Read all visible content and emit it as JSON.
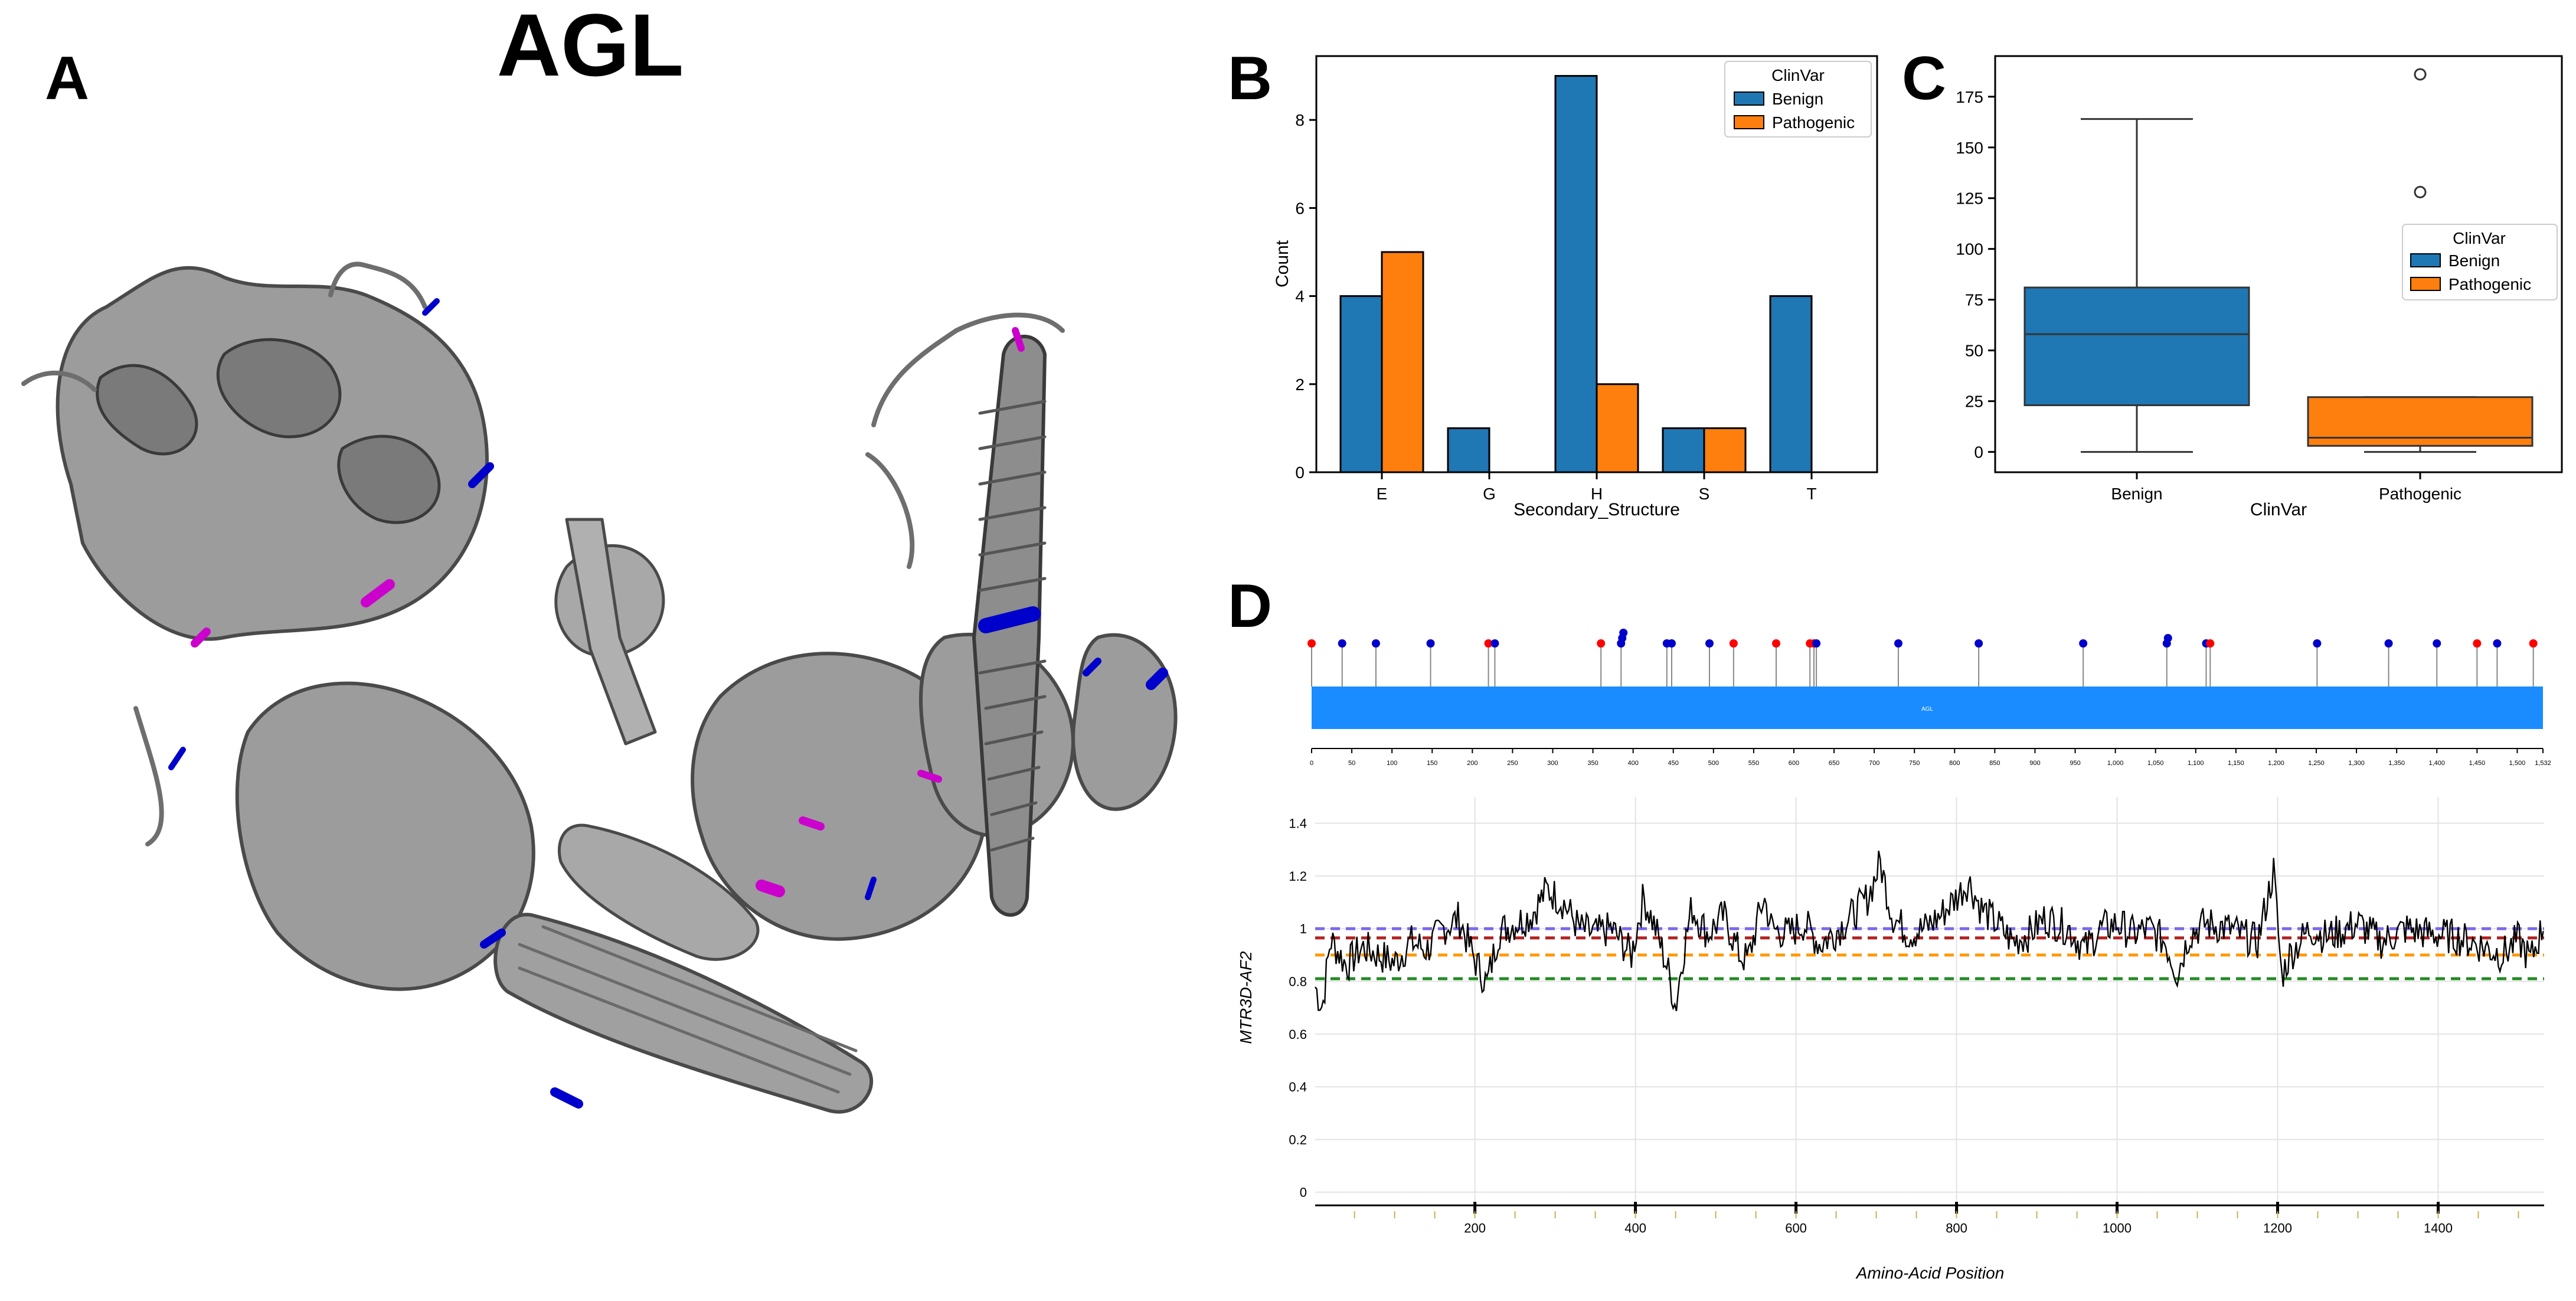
{
  "figure_title": "AGL",
  "panel_labels": {
    "a": "A",
    "b": "B",
    "c": "C",
    "d": "D"
  },
  "colors": {
    "benign": "#1f77b4",
    "pathogenic": "#ff7f0e",
    "protein_bar": "#1a8cff",
    "lollipop_benign": "#0000cc",
    "lollipop_pathogenic": "#ff0000",
    "structure_gray": "#8a8a8a",
    "structure_blue": "#0000cc",
    "structure_magenta": "#cc00cc",
    "line_purple": "#7b68ee",
    "line_red": "#b22222",
    "line_orange": "#ff9900",
    "line_green": "#228b22"
  },
  "panel_a": {
    "description_icon": "protein-structure-ribbon"
  },
  "chart_data": [
    {
      "panel": "B",
      "type": "bar",
      "categories": [
        "E",
        "G",
        "H",
        "S",
        "T"
      ],
      "series": [
        {
          "name": "Benign",
          "values": [
            4,
            1,
            9,
            1,
            4
          ]
        },
        {
          "name": "Pathogenic",
          "values": [
            5,
            0,
            2,
            1,
            0
          ]
        }
      ],
      "xlabel": "Secondary_Structure",
      "ylabel": "Count",
      "ylim": [
        0,
        9.45
      ],
      "yticks": [
        "0",
        "2",
        "4",
        "6",
        "8"
      ],
      "legend_title": "ClinVar",
      "legend_position": "top-right"
    },
    {
      "panel": "C",
      "type": "box",
      "categories": [
        "Benign",
        "Pathogenic"
      ],
      "boxes": [
        {
          "name": "Benign",
          "min": 0,
          "q1": 23,
          "median": 58,
          "q3": 81,
          "max": 164,
          "outliers": []
        },
        {
          "name": "Pathogenic",
          "min": 0,
          "q1": 3,
          "median": 7,
          "q3": 27,
          "max": 27,
          "outliers": [
            128,
            186
          ]
        }
      ],
      "xlabel": "ClinVar",
      "ylabel": "",
      "ylim": [
        -10,
        195
      ],
      "yticks": [
        "0",
        "25",
        "50",
        "75",
        "100",
        "125",
        "150",
        "175"
      ],
      "legend_title": "ClinVar",
      "legend_position": "center-right"
    },
    {
      "panel": "D-top",
      "type": "lollipop",
      "protein_length": 1532,
      "protein_label": "AGL",
      "xticks": [
        "0",
        "50",
        "100",
        "150",
        "200",
        "250",
        "300",
        "350",
        "400",
        "450",
        "500",
        "550",
        "600",
        "650",
        "700",
        "750",
        "800",
        "850",
        "900",
        "950",
        "1,000",
        "1,050",
        "1,100",
        "1,150",
        "1,200",
        "1,250",
        "1,300",
        "1,350",
        "1,400",
        "1,450",
        "1,500",
        "1,532"
      ],
      "variants": [
        {
          "pos": 0,
          "class": "Pathogenic",
          "count": 1
        },
        {
          "pos": 38,
          "class": "Benign",
          "count": 1
        },
        {
          "pos": 80,
          "class": "Benign",
          "count": 1
        },
        {
          "pos": 148,
          "class": "Benign",
          "count": 1
        },
        {
          "pos": 220,
          "class": "Pathogenic",
          "count": 1
        },
        {
          "pos": 228,
          "class": "Benign",
          "count": 1
        },
        {
          "pos": 360,
          "class": "Pathogenic",
          "count": 1
        },
        {
          "pos": 385,
          "class": "Benign",
          "count": 3
        },
        {
          "pos": 442,
          "class": "Benign",
          "count": 1
        },
        {
          "pos": 448,
          "class": "Benign",
          "count": 1
        },
        {
          "pos": 495,
          "class": "Benign",
          "count": 1
        },
        {
          "pos": 525,
          "class": "Pathogenic",
          "count": 1
        },
        {
          "pos": 578,
          "class": "Pathogenic",
          "count": 1
        },
        {
          "pos": 620,
          "class": "Pathogenic",
          "count": 1
        },
        {
          "pos": 625,
          "class": "Pathogenic",
          "count": 1
        },
        {
          "pos": 628,
          "class": "Benign",
          "count": 1
        },
        {
          "pos": 730,
          "class": "Benign",
          "count": 1
        },
        {
          "pos": 830,
          "class": "Benign",
          "count": 1
        },
        {
          "pos": 960,
          "class": "Benign",
          "count": 1
        },
        {
          "pos": 1064,
          "class": "Benign",
          "count": 2
        },
        {
          "pos": 1113,
          "class": "Benign",
          "count": 1
        },
        {
          "pos": 1118,
          "class": "Pathogenic",
          "count": 1
        },
        {
          "pos": 1251,
          "class": "Benign",
          "count": 1
        },
        {
          "pos": 1340,
          "class": "Benign",
          "count": 1
        },
        {
          "pos": 1400,
          "class": "Benign",
          "count": 1
        },
        {
          "pos": 1450,
          "class": "Pathogenic",
          "count": 1
        },
        {
          "pos": 1475,
          "class": "Benign",
          "count": 1
        },
        {
          "pos": 1520,
          "class": "Pathogenic",
          "count": 1
        }
      ]
    },
    {
      "panel": "D-bottom",
      "type": "line",
      "xlabel": "Amino-Acid Position",
      "ylabel": "MTR3D-AF2",
      "xlim": [
        1,
        1532
      ],
      "ylim": [
        -0.05,
        1.5
      ],
      "xticks": [
        "200",
        "400",
        "600",
        "800",
        "1000",
        "1200",
        "1400"
      ],
      "yticks": [
        "0",
        "0.2",
        "0.4",
        "0.6",
        "0.8",
        "1",
        "1.2",
        "1.4"
      ],
      "grid": true,
      "reference_lines": [
        {
          "name": "purple",
          "y": 1.0
        },
        {
          "name": "red",
          "y": 0.965
        },
        {
          "name": "orange",
          "y": 0.9
        },
        {
          "name": "green",
          "y": 0.81
        }
      ],
      "anchors": [
        [
          1,
          0.78
        ],
        [
          10,
          0.7
        ],
        [
          20,
          0.96
        ],
        [
          40,
          0.86
        ],
        [
          60,
          0.93
        ],
        [
          80,
          0.9
        ],
        [
          100,
          0.87
        ],
        [
          120,
          0.95
        ],
        [
          140,
          0.92
        ],
        [
          160,
          1.0
        ],
        [
          180,
          1.04
        ],
        [
          200,
          0.88
        ],
        [
          215,
          0.79
        ],
        [
          230,
          0.99
        ],
        [
          250,
          1.02
        ],
        [
          270,
          1.05
        ],
        [
          290,
          1.15
        ],
        [
          310,
          1.1
        ],
        [
          330,
          1.0
        ],
        [
          350,
          0.98
        ],
        [
          370,
          1.0
        ],
        [
          385,
          0.94
        ],
        [
          395,
          0.9
        ],
        [
          410,
          1.12
        ],
        [
          425,
          1.0
        ],
        [
          440,
          0.85
        ],
        [
          450,
          0.7
        ],
        [
          458,
          0.88
        ],
        [
          470,
          1.08
        ],
        [
          490,
          0.98
        ],
        [
          510,
          1.05
        ],
        [
          530,
          0.9
        ],
        [
          540,
          0.88
        ],
        [
          560,
          1.12
        ],
        [
          570,
          1.0
        ],
        [
          590,
          0.98
        ],
        [
          610,
          1.02
        ],
        [
          630,
          0.94
        ],
        [
          650,
          0.99
        ],
        [
          670,
          1.05
        ],
        [
          690,
          1.12
        ],
        [
          705,
          1.25
        ],
        [
          720,
          1.05
        ],
        [
          740,
          0.98
        ],
        [
          760,
          1.0
        ],
        [
          780,
          1.05
        ],
        [
          800,
          1.12
        ],
        [
          815,
          1.18
        ],
        [
          830,
          1.08
        ],
        [
          850,
          1.02
        ],
        [
          870,
          0.95
        ],
        [
          890,
          0.98
        ],
        [
          910,
          1.04
        ],
        [
          940,
          1.0
        ],
        [
          960,
          0.92
        ],
        [
          980,
          1.0
        ],
        [
          1000,
          1.02
        ],
        [
          1020,
          0.98
        ],
        [
          1040,
          1.0
        ],
        [
          1060,
          0.95
        ],
        [
          1075,
          0.83
        ],
        [
          1090,
          0.98
        ],
        [
          1110,
          1.02
        ],
        [
          1140,
          1.0
        ],
        [
          1160,
          0.97
        ],
        [
          1175,
          0.95
        ],
        [
          1195,
          1.22
        ],
        [
          1205,
          0.82
        ],
        [
          1215,
          0.9
        ],
        [
          1240,
          1.0
        ],
        [
          1260,
          0.97
        ],
        [
          1280,
          0.99
        ],
        [
          1300,
          1.02
        ],
        [
          1330,
          0.95
        ],
        [
          1360,
          1.0
        ],
        [
          1390,
          0.98
        ],
        [
          1420,
          0.97
        ],
        [
          1450,
          0.94
        ],
        [
          1480,
          0.9
        ],
        [
          1500,
          0.96
        ],
        [
          1515,
          0.88
        ],
        [
          1532,
          1.02
        ]
      ]
    }
  ]
}
